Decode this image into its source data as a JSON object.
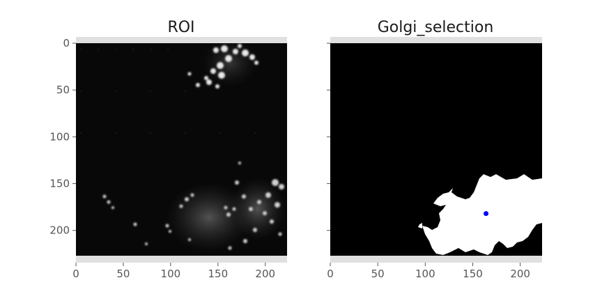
{
  "chart_data": [
    {
      "type": "image",
      "title": "ROI",
      "xlim": [
        0,
        223
      ],
      "ylim": [
        227,
        0
      ],
      "xticks": [
        0,
        50,
        100,
        150,
        200
      ],
      "yticks": [
        0,
        50,
        100,
        150,
        200
      ],
      "grid": false,
      "image": "grayscale fluorescence micrograph"
    },
    {
      "type": "image",
      "title": "Golgi_selection",
      "xlim": [
        0,
        223
      ],
      "ylim": [
        227,
        0
      ],
      "xticks": [
        0,
        50,
        100,
        150,
        200
      ],
      "yticks": [
        0,
        50,
        100,
        150,
        200
      ],
      "ytick_labels_visible": false,
      "grid": false,
      "image": "binary mask (white selected region on black)",
      "points": [
        {
          "x": 164,
          "y": 182,
          "color": "#0000ff"
        }
      ]
    }
  ],
  "colors": {
    "axes_frame": "#e0e0e0",
    "image_background": "#000000",
    "mask": "#ffffff",
    "marker": "#0000ff"
  }
}
